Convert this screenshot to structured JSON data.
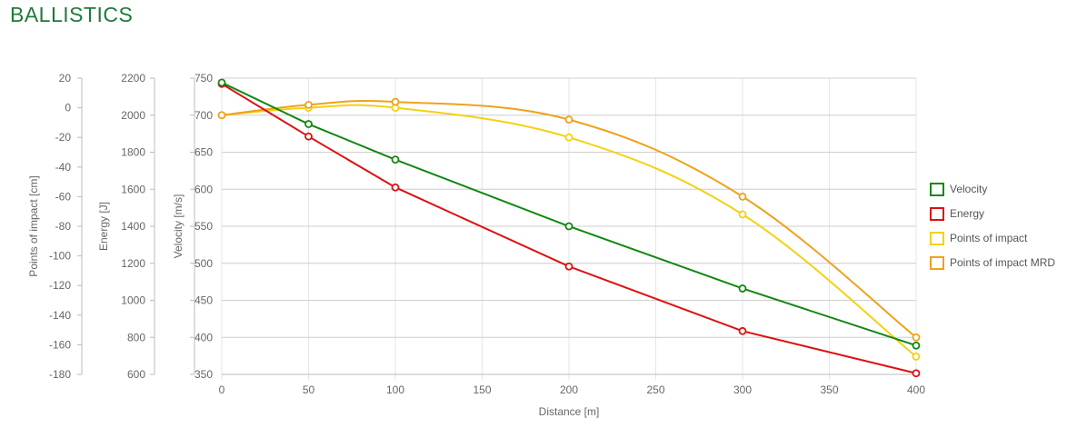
{
  "page": {
    "title": "BALLISTICS"
  },
  "colors": {
    "velocity": "#118811",
    "energy": "#dd1111",
    "poi": "#f5d10f",
    "poi_mrd": "#f0a11b",
    "grid": "#e6e6e6",
    "axis": "#bbbbbb",
    "title": "#1f7a3a"
  },
  "chart_data": {
    "type": "line",
    "title": "",
    "xlabel": "Distance [m]",
    "xlim": [
      0,
      400
    ],
    "x_ticks": [
      0,
      50,
      100,
      150,
      200,
      250,
      300,
      350,
      400
    ],
    "x": [
      0,
      50,
      100,
      200,
      300,
      400
    ],
    "grid": true,
    "legend_position": "right",
    "axes": [
      {
        "id": "poi",
        "label": "Points of impact [cm]",
        "ylim": [
          -180,
          20
        ],
        "ticks": [
          20,
          0,
          -20,
          -40,
          -60,
          -80,
          -100,
          -120,
          -140,
          -160,
          -180
        ]
      },
      {
        "id": "energy",
        "label": "Energy [J]",
        "ylim": [
          600,
          2200
        ],
        "ticks": [
          2200,
          2000,
          1800,
          1600,
          1400,
          1200,
          1000,
          800,
          600
        ]
      },
      {
        "id": "velocity",
        "label": "Velocity [m/s]",
        "ylim": [
          350,
          750
        ],
        "ticks": [
          750,
          700,
          650,
          600,
          550,
          500,
          450,
          400,
          350
        ]
      }
    ],
    "series": [
      {
        "name": "Velocity",
        "axis": "velocity",
        "color": "#118811",
        "smooth": false,
        "values": [
          744,
          688,
          640,
          550,
          466,
          389
        ]
      },
      {
        "name": "Energy",
        "axis": "energy",
        "color": "#dd1111",
        "smooth": false,
        "values": [
          2169,
          1885,
          1610,
          1183,
          834,
          606
        ]
      },
      {
        "name": "Points of impact",
        "axis": "poi",
        "color": "#f5d10f",
        "smooth": true,
        "values": [
          -5,
          0,
          0,
          -20,
          -72,
          -168
        ]
      },
      {
        "name": "Points of impact MRD",
        "axis": "poi",
        "color": "#f0a11b",
        "smooth": true,
        "values": [
          -5,
          2,
          4,
          -8,
          -60,
          -155
        ]
      }
    ]
  }
}
